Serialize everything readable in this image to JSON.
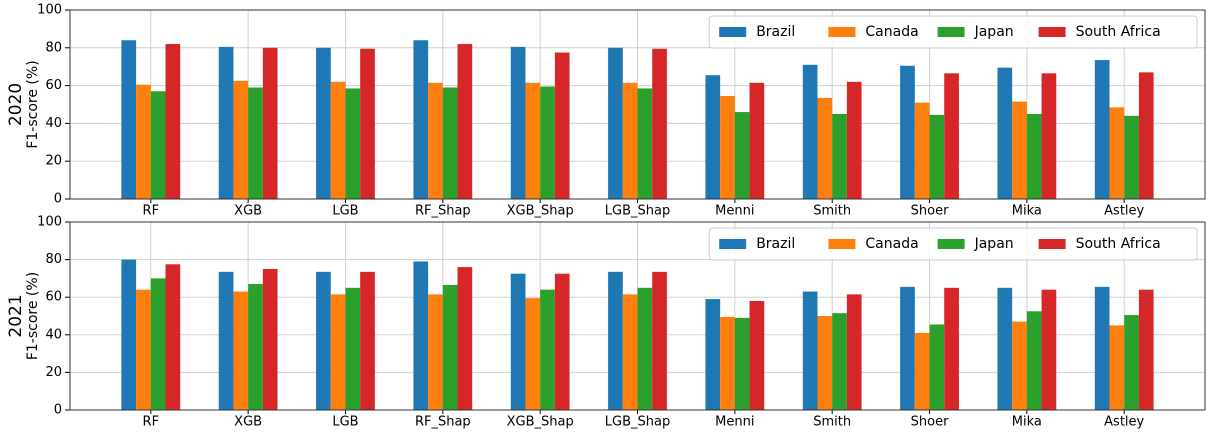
{
  "chart_data": [
    {
      "type": "bar",
      "title": "2020",
      "ylabel": "F1-score (%)",
      "categories": [
        "RF",
        "XGB",
        "LGB",
        "RF_Shap",
        "XGB_Shap",
        "LGB_Shap",
        "Menni",
        "Smith",
        "Shoer",
        "Mika",
        "Astley"
      ],
      "series": [
        {
          "name": "Brazil",
          "color": "#1f77b4",
          "values": [
            84,
            80.5,
            80,
            84,
            80.5,
            80,
            65.5,
            71,
            70.5,
            69.5,
            73.5
          ]
        },
        {
          "name": "Canada",
          "color": "#ff7f0e",
          "values": [
            60.5,
            62.5,
            62,
            61.5,
            61.5,
            61.5,
            54.5,
            53.5,
            51,
            51.5,
            48.5
          ]
        },
        {
          "name": "Japan",
          "color": "#2ca02c",
          "values": [
            57,
            59,
            58.5,
            59,
            59.5,
            58.5,
            46,
            45,
            44.5,
            45,
            44
          ]
        },
        {
          "name": "South Africa",
          "color": "#d62728",
          "values": [
            82,
            80,
            79.5,
            82,
            77.5,
            79.5,
            61.5,
            62,
            66.5,
            66.5,
            67
          ]
        }
      ],
      "ylim": [
        0,
        100
      ],
      "yticks": [
        0,
        20,
        40,
        60,
        80,
        100
      ],
      "grid": true,
      "legend": "upper right"
    },
    {
      "type": "bar",
      "title": "2021",
      "ylabel": "F1-score (%)",
      "categories": [
        "RF",
        "XGB",
        "LGB",
        "RF_Shap",
        "XGB_Shap",
        "LGB_Shap",
        "Menni",
        "Smith",
        "Shoer",
        "Mika",
        "Astley"
      ],
      "series": [
        {
          "name": "Brazil",
          "color": "#1f77b4",
          "values": [
            80,
            73.5,
            73.5,
            79,
            72.5,
            73.5,
            59,
            63,
            65.5,
            65,
            65.5
          ]
        },
        {
          "name": "Canada",
          "color": "#ff7f0e",
          "values": [
            64,
            63,
            61.5,
            61.5,
            59.5,
            61.5,
            49.5,
            50,
            41,
            47,
            45
          ]
        },
        {
          "name": "Japan",
          "color": "#2ca02c",
          "values": [
            70,
            67,
            65,
            66.5,
            64,
            65,
            49,
            51.5,
            45.5,
            52.5,
            50.5
          ]
        },
        {
          "name": "South Africa",
          "color": "#d62728",
          "values": [
            77.5,
            75,
            73.5,
            76,
            72.5,
            73.5,
            58,
            61.5,
            65,
            64,
            64
          ]
        }
      ],
      "ylim": [
        0,
        100
      ],
      "yticks": [
        0,
        20,
        40,
        60,
        80,
        100
      ],
      "grid": true,
      "legend": "upper right"
    }
  ]
}
